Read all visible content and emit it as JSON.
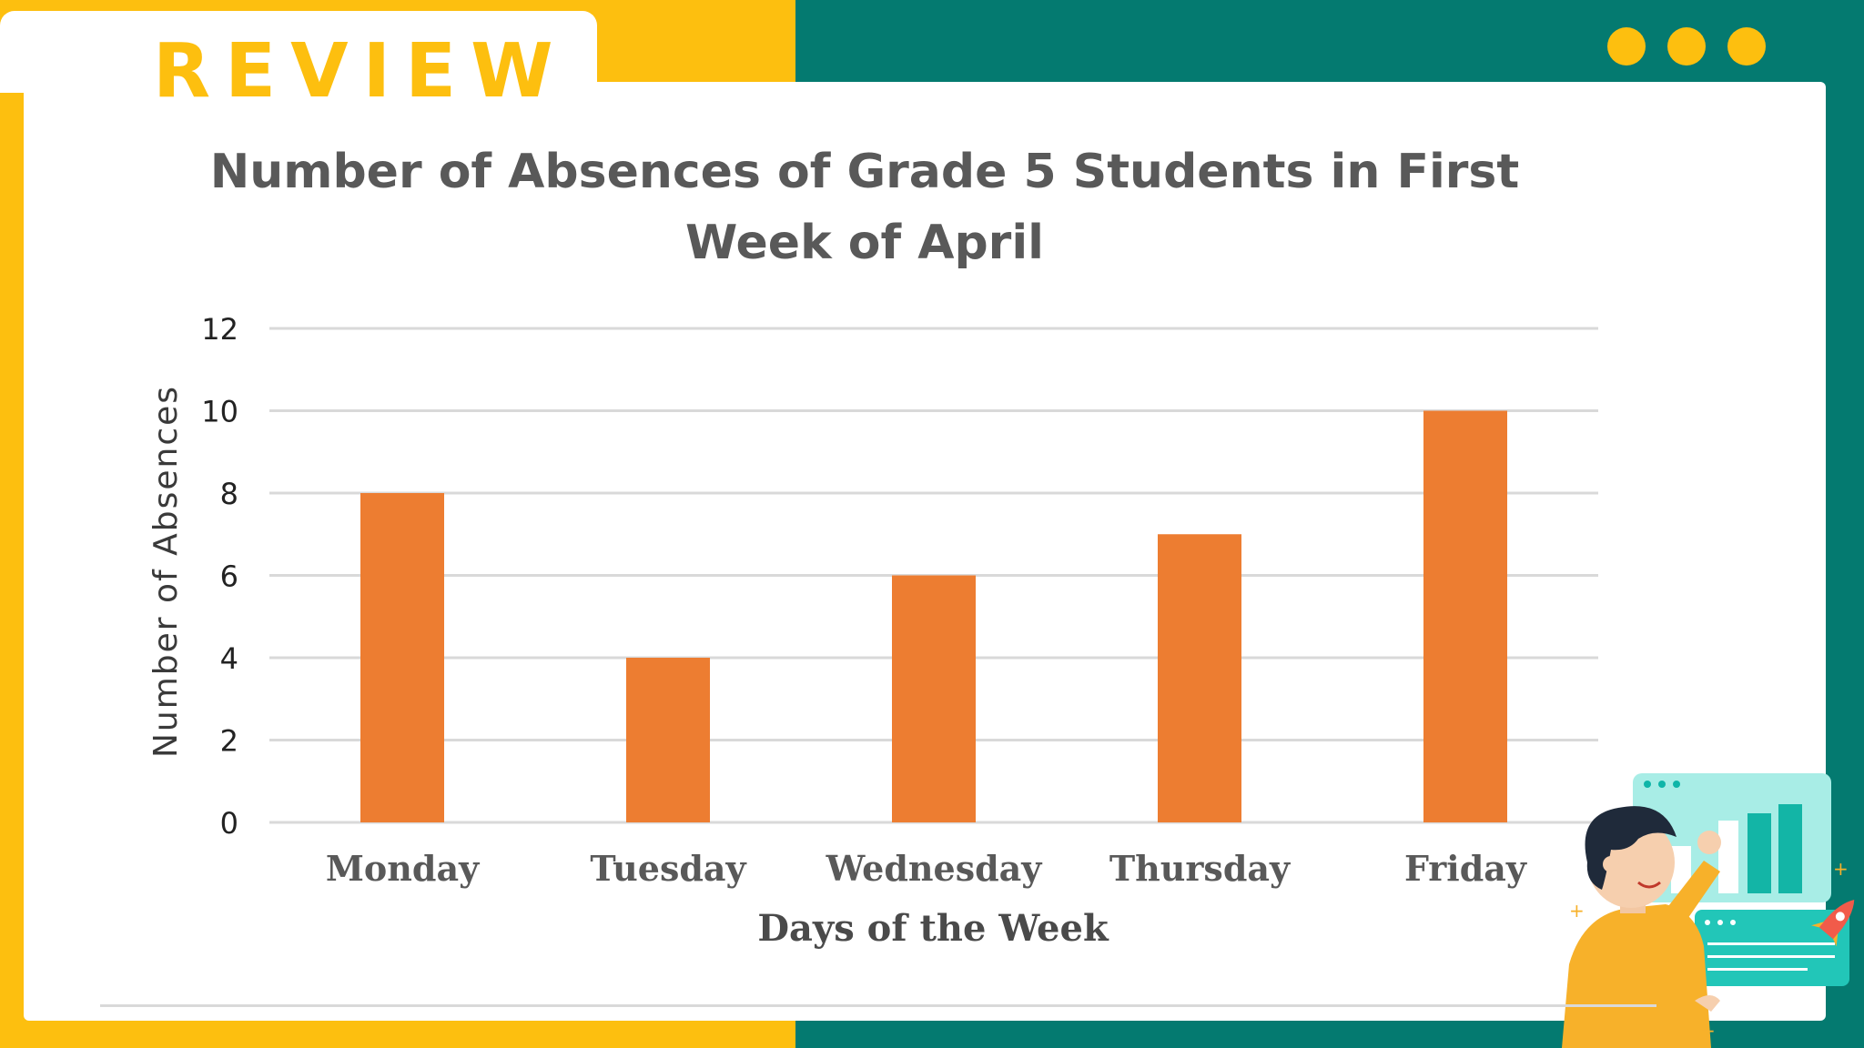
{
  "slide": {
    "heading": "REVIEW",
    "colors": {
      "yellow": "#FDBF0F",
      "teal": "#047A70",
      "bar": "#ED7D31"
    }
  },
  "chart_data": {
    "type": "bar",
    "title": "Number of Absences of Grade 5 Students in First Week of April",
    "categories": [
      "Monday",
      "Tuesday",
      "Wednesday",
      "Thursday",
      "Friday"
    ],
    "values": [
      8,
      4,
      6,
      7,
      10
    ],
    "xlabel": "Days of the Week",
    "ylabel": "Number of Absences",
    "ylim": [
      0,
      12
    ],
    "yticks": [
      0,
      2,
      4,
      6,
      8,
      10,
      12
    ],
    "grid": true,
    "legend": "none"
  },
  "illustration": {
    "icon": "person-presenting-chart-icon"
  }
}
